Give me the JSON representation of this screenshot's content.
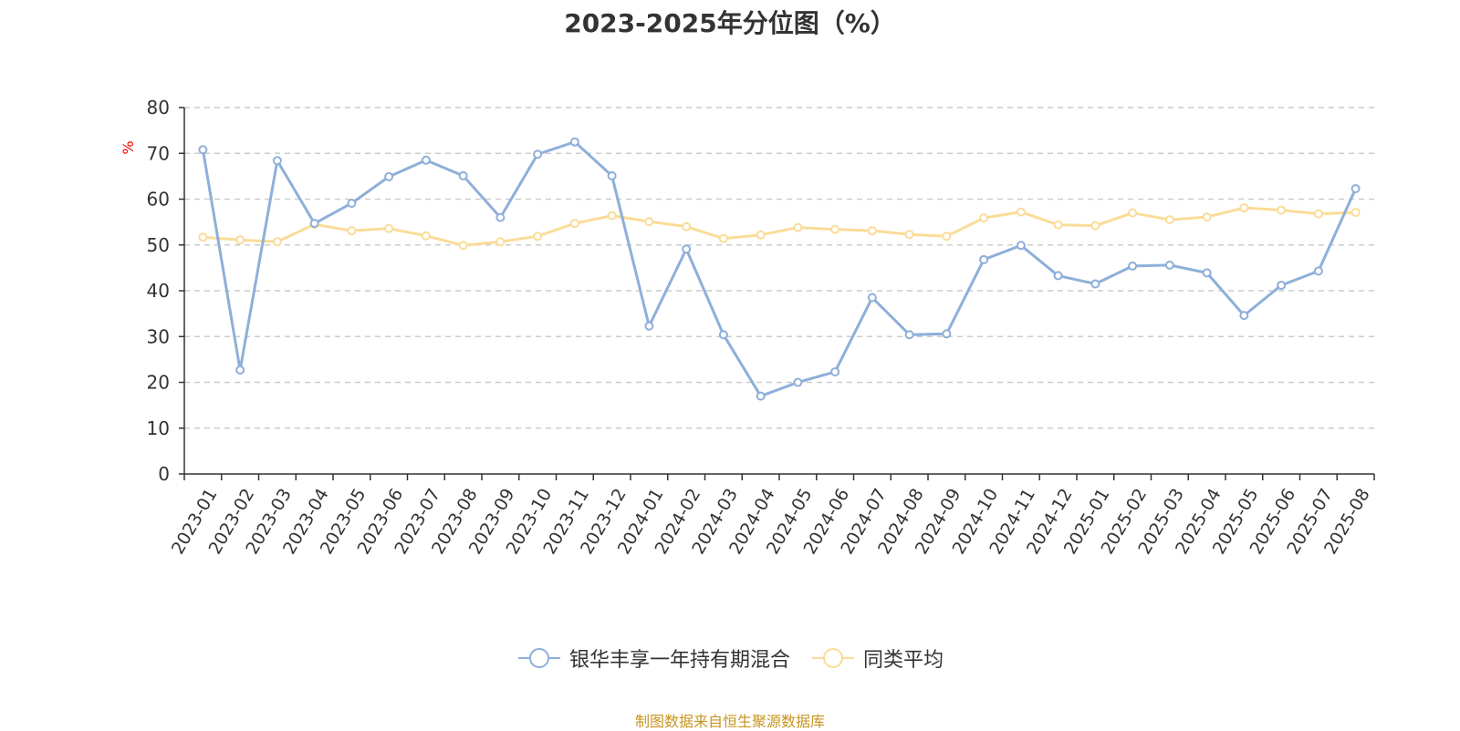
{
  "chart_data": {
    "type": "line",
    "title": "2023-2025年分位图（%）",
    "ylabel": "%",
    "ylim": [
      0,
      80
    ],
    "yticks": [
      0,
      10,
      20,
      30,
      40,
      50,
      60,
      70,
      80
    ],
    "grid": true,
    "legend_position": "bottom",
    "categories": [
      "2023-01",
      "2023-02",
      "2023-03",
      "2023-04",
      "2023-05",
      "2023-06",
      "2023-07",
      "2023-08",
      "2023-09",
      "2023-10",
      "2023-11",
      "2023-12",
      "2024-01",
      "2024-02",
      "2024-03",
      "2024-04",
      "2024-05",
      "2024-06",
      "2024-07",
      "2024-08",
      "2024-09",
      "2024-10",
      "2024-11",
      "2024-12",
      "2025-01",
      "2025-02",
      "2025-03",
      "2025-04",
      "2025-05",
      "2025-06",
      "2025-07",
      "2025-08"
    ],
    "series": [
      {
        "name": "银华丰享一年持有期混合",
        "color": "#8eafd9",
        "values": [
          70.8,
          22.7,
          68.4,
          54.7,
          59.1,
          64.9,
          68.5,
          65.1,
          56.0,
          69.8,
          72.5,
          65.1,
          32.3,
          49.1,
          30.4,
          17.0,
          20.0,
          22.3,
          38.5,
          30.4,
          30.6,
          46.8,
          49.9,
          43.3,
          41.5,
          45.4,
          45.6,
          43.9,
          34.6,
          41.2,
          44.3,
          62.3
        ]
      },
      {
        "name": "同类平均",
        "color": "#fadc98",
        "values": [
          51.7,
          51.1,
          50.7,
          54.5,
          53.1,
          53.6,
          52.0,
          49.9,
          50.7,
          51.9,
          54.7,
          56.4,
          55.1,
          54.0,
          51.4,
          52.2,
          53.8,
          53.4,
          53.1,
          52.3,
          51.9,
          55.9,
          57.2,
          54.4,
          54.2,
          57.0,
          55.5,
          56.1,
          58.1,
          57.6,
          56.8,
          57.1
        ]
      }
    ]
  },
  "source_note": "制图数据来自恒生聚源数据库",
  "colors": {
    "axis": "#333333",
    "grid": "#cccccc",
    "unit_label": "#ff0000",
    "background": "#ffffff"
  }
}
